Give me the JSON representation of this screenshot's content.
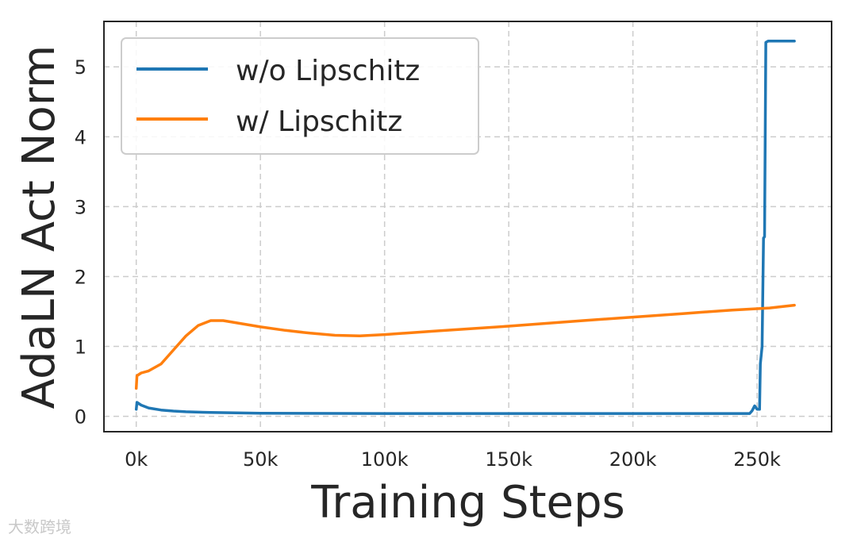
{
  "chart_data": {
    "type": "line",
    "title": "",
    "xlabel": "Training Steps",
    "ylabel": "AdaLN Act Norm",
    "xlim": [
      -13000,
      280000
    ],
    "ylim": [
      -0.22,
      5.65
    ],
    "x_ticks": [
      0,
      50000,
      100000,
      150000,
      200000,
      250000
    ],
    "x_tick_labels": [
      "0k",
      "50k",
      "100k",
      "150k",
      "200k",
      "250k"
    ],
    "y_ticks": [
      0,
      1,
      2,
      3,
      4,
      5
    ],
    "y_tick_labels": [
      "0",
      "1",
      "2",
      "3",
      "4",
      "5"
    ],
    "grid": true,
    "legend_position": "top-left",
    "series": [
      {
        "name": "w/o Lipschitz",
        "color": "#1f77b4",
        "points": [
          [
            0,
            0.1
          ],
          [
            300,
            0.2
          ],
          [
            2000,
            0.16
          ],
          [
            5000,
            0.12
          ],
          [
            10000,
            0.09
          ],
          [
            15000,
            0.075
          ],
          [
            20000,
            0.065
          ],
          [
            30000,
            0.055
          ],
          [
            50000,
            0.045
          ],
          [
            100000,
            0.04
          ],
          [
            150000,
            0.04
          ],
          [
            200000,
            0.04
          ],
          [
            247000,
            0.04
          ],
          [
            248000,
            0.08
          ],
          [
            249000,
            0.15
          ],
          [
            250000,
            0.1
          ],
          [
            251000,
            0.1
          ],
          [
            251300,
            0.75
          ],
          [
            252000,
            1.0
          ],
          [
            252600,
            2.55
          ],
          [
            253000,
            2.57
          ],
          [
            253500,
            5.35
          ],
          [
            254500,
            5.37
          ],
          [
            265000,
            5.37
          ]
        ]
      },
      {
        "name": "w/ Lipschitz",
        "color": "#ff7f0e",
        "points": [
          [
            0,
            0.4
          ],
          [
            300,
            0.58
          ],
          [
            2000,
            0.62
          ],
          [
            5000,
            0.65
          ],
          [
            10000,
            0.75
          ],
          [
            15000,
            0.95
          ],
          [
            20000,
            1.15
          ],
          [
            25000,
            1.3
          ],
          [
            30000,
            1.37
          ],
          [
            35000,
            1.37
          ],
          [
            40000,
            1.34
          ],
          [
            50000,
            1.28
          ],
          [
            60000,
            1.23
          ],
          [
            70000,
            1.19
          ],
          [
            80000,
            1.16
          ],
          [
            90000,
            1.15
          ],
          [
            100000,
            1.17
          ],
          [
            120000,
            1.22
          ],
          [
            150000,
            1.29
          ],
          [
            180000,
            1.37
          ],
          [
            200000,
            1.42
          ],
          [
            220000,
            1.47
          ],
          [
            240000,
            1.52
          ],
          [
            255000,
            1.55
          ],
          [
            265000,
            1.59
          ]
        ]
      }
    ]
  },
  "watermark": "大数跨境"
}
